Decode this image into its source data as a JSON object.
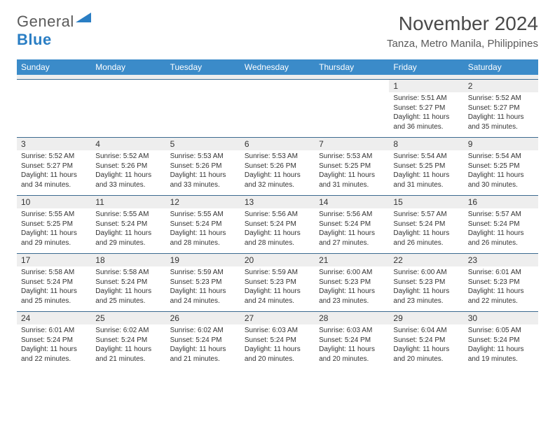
{
  "logo": {
    "general": "General",
    "blue": "Blue"
  },
  "title": "November 2024",
  "location": "Tanza, Metro Manila, Philippines",
  "colors": {
    "header_bg": "#3b8bc9",
    "header_text": "#ffffff",
    "daynum_bg": "#eeeeee",
    "week_border": "#3b6a8f",
    "text": "#333333",
    "logo_general": "#5a5a5a",
    "logo_blue": "#2a7ec4",
    "title_color": "#4a4a4a"
  },
  "typography": {
    "title_fontsize": 28,
    "location_fontsize": 15,
    "header_fontsize": 12,
    "daynum_fontsize": 12,
    "body_fontsize": 10
  },
  "weekdays": [
    "Sunday",
    "Monday",
    "Tuesday",
    "Wednesday",
    "Thursday",
    "Friday",
    "Saturday"
  ],
  "weeks": [
    [
      {
        "empty": true
      },
      {
        "empty": true
      },
      {
        "empty": true
      },
      {
        "empty": true
      },
      {
        "empty": true
      },
      {
        "num": "1",
        "sunrise": "Sunrise: 5:51 AM",
        "sunset": "Sunset: 5:27 PM",
        "daylight": "Daylight: 11 hours and 36 minutes."
      },
      {
        "num": "2",
        "sunrise": "Sunrise: 5:52 AM",
        "sunset": "Sunset: 5:27 PM",
        "daylight": "Daylight: 11 hours and 35 minutes."
      }
    ],
    [
      {
        "num": "3",
        "sunrise": "Sunrise: 5:52 AM",
        "sunset": "Sunset: 5:27 PM",
        "daylight": "Daylight: 11 hours and 34 minutes."
      },
      {
        "num": "4",
        "sunrise": "Sunrise: 5:52 AM",
        "sunset": "Sunset: 5:26 PM",
        "daylight": "Daylight: 11 hours and 33 minutes."
      },
      {
        "num": "5",
        "sunrise": "Sunrise: 5:53 AM",
        "sunset": "Sunset: 5:26 PM",
        "daylight": "Daylight: 11 hours and 33 minutes."
      },
      {
        "num": "6",
        "sunrise": "Sunrise: 5:53 AM",
        "sunset": "Sunset: 5:26 PM",
        "daylight": "Daylight: 11 hours and 32 minutes."
      },
      {
        "num": "7",
        "sunrise": "Sunrise: 5:53 AM",
        "sunset": "Sunset: 5:25 PM",
        "daylight": "Daylight: 11 hours and 31 minutes."
      },
      {
        "num": "8",
        "sunrise": "Sunrise: 5:54 AM",
        "sunset": "Sunset: 5:25 PM",
        "daylight": "Daylight: 11 hours and 31 minutes."
      },
      {
        "num": "9",
        "sunrise": "Sunrise: 5:54 AM",
        "sunset": "Sunset: 5:25 PM",
        "daylight": "Daylight: 11 hours and 30 minutes."
      }
    ],
    [
      {
        "num": "10",
        "sunrise": "Sunrise: 5:55 AM",
        "sunset": "Sunset: 5:25 PM",
        "daylight": "Daylight: 11 hours and 29 minutes."
      },
      {
        "num": "11",
        "sunrise": "Sunrise: 5:55 AM",
        "sunset": "Sunset: 5:24 PM",
        "daylight": "Daylight: 11 hours and 29 minutes."
      },
      {
        "num": "12",
        "sunrise": "Sunrise: 5:55 AM",
        "sunset": "Sunset: 5:24 PM",
        "daylight": "Daylight: 11 hours and 28 minutes."
      },
      {
        "num": "13",
        "sunrise": "Sunrise: 5:56 AM",
        "sunset": "Sunset: 5:24 PM",
        "daylight": "Daylight: 11 hours and 28 minutes."
      },
      {
        "num": "14",
        "sunrise": "Sunrise: 5:56 AM",
        "sunset": "Sunset: 5:24 PM",
        "daylight": "Daylight: 11 hours and 27 minutes."
      },
      {
        "num": "15",
        "sunrise": "Sunrise: 5:57 AM",
        "sunset": "Sunset: 5:24 PM",
        "daylight": "Daylight: 11 hours and 26 minutes."
      },
      {
        "num": "16",
        "sunrise": "Sunrise: 5:57 AM",
        "sunset": "Sunset: 5:24 PM",
        "daylight": "Daylight: 11 hours and 26 minutes."
      }
    ],
    [
      {
        "num": "17",
        "sunrise": "Sunrise: 5:58 AM",
        "sunset": "Sunset: 5:24 PM",
        "daylight": "Daylight: 11 hours and 25 minutes."
      },
      {
        "num": "18",
        "sunrise": "Sunrise: 5:58 AM",
        "sunset": "Sunset: 5:24 PM",
        "daylight": "Daylight: 11 hours and 25 minutes."
      },
      {
        "num": "19",
        "sunrise": "Sunrise: 5:59 AM",
        "sunset": "Sunset: 5:23 PM",
        "daylight": "Daylight: 11 hours and 24 minutes."
      },
      {
        "num": "20",
        "sunrise": "Sunrise: 5:59 AM",
        "sunset": "Sunset: 5:23 PM",
        "daylight": "Daylight: 11 hours and 24 minutes."
      },
      {
        "num": "21",
        "sunrise": "Sunrise: 6:00 AM",
        "sunset": "Sunset: 5:23 PM",
        "daylight": "Daylight: 11 hours and 23 minutes."
      },
      {
        "num": "22",
        "sunrise": "Sunrise: 6:00 AM",
        "sunset": "Sunset: 5:23 PM",
        "daylight": "Daylight: 11 hours and 23 minutes."
      },
      {
        "num": "23",
        "sunrise": "Sunrise: 6:01 AM",
        "sunset": "Sunset: 5:23 PM",
        "daylight": "Daylight: 11 hours and 22 minutes."
      }
    ],
    [
      {
        "num": "24",
        "sunrise": "Sunrise: 6:01 AM",
        "sunset": "Sunset: 5:24 PM",
        "daylight": "Daylight: 11 hours and 22 minutes."
      },
      {
        "num": "25",
        "sunrise": "Sunrise: 6:02 AM",
        "sunset": "Sunset: 5:24 PM",
        "daylight": "Daylight: 11 hours and 21 minutes."
      },
      {
        "num": "26",
        "sunrise": "Sunrise: 6:02 AM",
        "sunset": "Sunset: 5:24 PM",
        "daylight": "Daylight: 11 hours and 21 minutes."
      },
      {
        "num": "27",
        "sunrise": "Sunrise: 6:03 AM",
        "sunset": "Sunset: 5:24 PM",
        "daylight": "Daylight: 11 hours and 20 minutes."
      },
      {
        "num": "28",
        "sunrise": "Sunrise: 6:03 AM",
        "sunset": "Sunset: 5:24 PM",
        "daylight": "Daylight: 11 hours and 20 minutes."
      },
      {
        "num": "29",
        "sunrise": "Sunrise: 6:04 AM",
        "sunset": "Sunset: 5:24 PM",
        "daylight": "Daylight: 11 hours and 20 minutes."
      },
      {
        "num": "30",
        "sunrise": "Sunrise: 6:05 AM",
        "sunset": "Sunset: 5:24 PM",
        "daylight": "Daylight: 11 hours and 19 minutes."
      }
    ]
  ]
}
